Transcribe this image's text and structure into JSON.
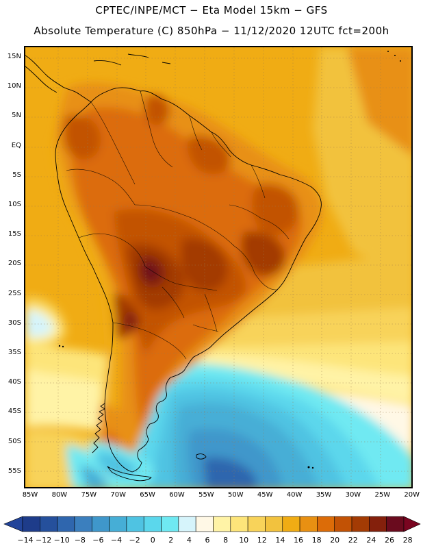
{
  "header": {
    "line1": "CPTEC/INPE/MCT −  Eta Model 15km − GFS",
    "line2": "Absolute Temperature (C) 850hPa − 11/12/2020 12UTC fct=200h"
  },
  "lat_labels": [
    "15N",
    "10N",
    "5N",
    "EQ",
    "5S",
    "10S",
    "15S",
    "20S",
    "25S",
    "30S",
    "35S",
    "40S",
    "45S",
    "50S",
    "55S"
  ],
  "lon_labels": [
    "85W",
    "80W",
    "75W",
    "70W",
    "65W",
    "60W",
    "55W",
    "50W",
    "45W",
    "40W",
    "35W",
    "30W",
    "25W",
    "20W"
  ],
  "colorbar": {
    "labels": [
      "−14",
      "−12",
      "−10",
      "−8",
      "−6",
      "−4",
      "−2",
      "0",
      "2",
      "4",
      "6",
      "8",
      "10",
      "12",
      "14",
      "16",
      "18",
      "20",
      "22",
      "24",
      "26",
      "28"
    ],
    "colors": [
      "#1e3c8a",
      "#25509c",
      "#2f66ae",
      "#3b7fbe",
      "#3f97cb",
      "#46aed6",
      "#4fc3e2",
      "#5bd7ec",
      "#6fe9f2",
      "#d6f4fb",
      "#fff8e6",
      "#fff3a6",
      "#fde57a",
      "#f8d35a",
      "#f2c23e",
      "#f0ac14",
      "#e89012",
      "#dc6c08",
      "#c25205",
      "#a33b04",
      "#84200c",
      "#6a0b1e"
    ],
    "under_color": "#22449a",
    "over_color": "#7a0520"
  }
}
